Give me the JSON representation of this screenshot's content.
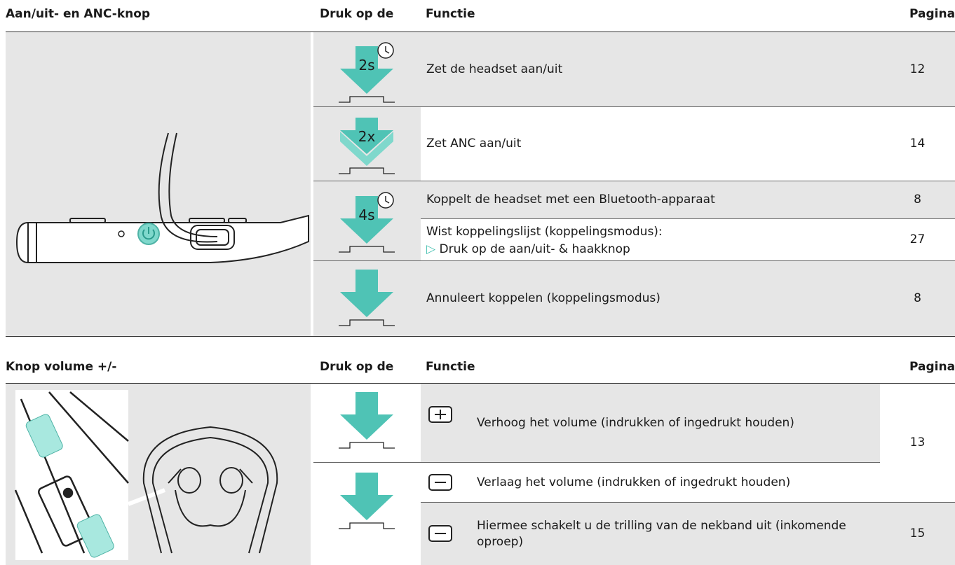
{
  "tables": [
    {
      "header": [
        "Aan/uit- en ANC-knop",
        "Druk op de",
        "Functie",
        "Pagina"
      ],
      "press_labels": [
        "2s",
        "2x",
        "4s"
      ],
      "rows": [
        {
          "function": "Zet de headset aan/uit",
          "page": 12
        },
        {
          "function": "Zet ANC aan/uit",
          "page": 14
        },
        {
          "function": "Koppelt de headset met een Bluetooth-apparaat",
          "page": 8
        },
        {
          "function": "Wist koppelingslijst (koppelingsmodus):",
          "note": "Druk op de aan/uit- & haakknop",
          "page": 27
        },
        {
          "function": "Annuleert koppelen (koppelingsmodus)",
          "page": 8
        }
      ]
    },
    {
      "header": [
        "Knop volume +/-",
        "Druk op de",
        "Functie",
        "Pagina"
      ],
      "rows": [
        {
          "function": "Verhoog het volume (indrukken of ingedrukt houden)",
          "page": 13
        },
        {
          "function": "Verlaag het volume (indrukken of ingedrukt houden)"
        },
        {
          "function": "Hiermee schakelt u de trilling van de nekband uit (inkomende oproep)",
          "page": 15
        }
      ]
    }
  ]
}
